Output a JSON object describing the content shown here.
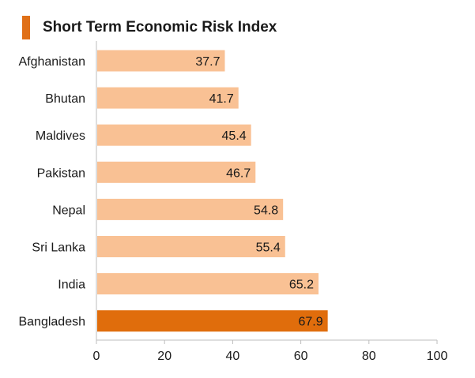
{
  "title": "Short Term Economic Risk Index",
  "colors": {
    "accent": "#e07018",
    "bar": "#f9c194",
    "highlight": "#e06d0c",
    "axis": "#bdbdbd"
  },
  "chart_data": {
    "type": "bar",
    "orientation": "horizontal",
    "title": "Short Term Economic Risk Index",
    "xlabel": "",
    "ylabel": "",
    "categories": [
      "Afghanistan",
      "Bhutan",
      "Maldives",
      "Pakistan",
      "Nepal",
      "Sri Lanka",
      "India",
      "Bangladesh"
    ],
    "values": [
      37.7,
      41.7,
      45.4,
      46.7,
      54.8,
      55.4,
      65.2,
      67.9
    ],
    "value_labels": [
      "37.7",
      "41.7",
      "45.4",
      "46.7",
      "54.8",
      "55.4",
      "65.2",
      "67.9"
    ],
    "highlight_category": "Bangladesh",
    "xlim": [
      0,
      100
    ],
    "xticks": [
      "0",
      "20",
      "40",
      "60",
      "80",
      "100"
    ],
    "grid": false,
    "legend": "none"
  }
}
